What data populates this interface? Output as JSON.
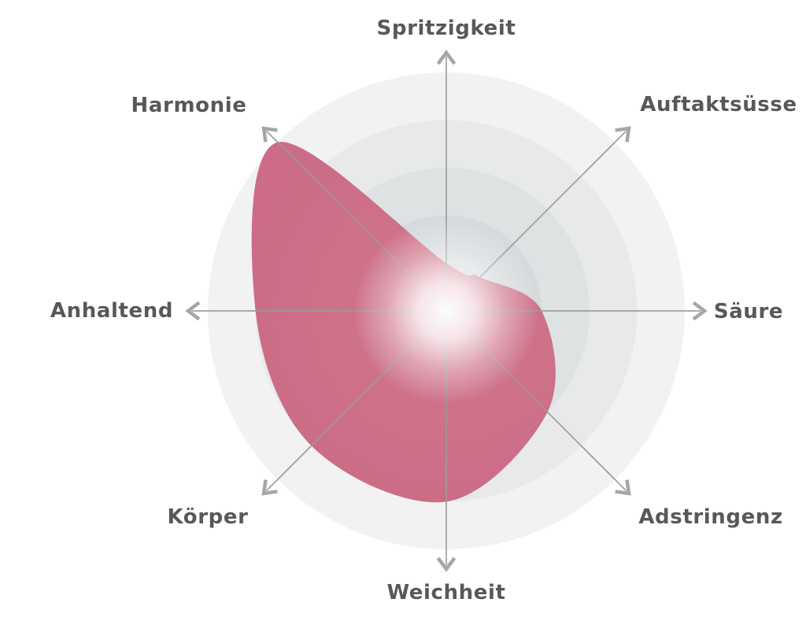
{
  "chart_data": {
    "type": "radar",
    "title": "",
    "categories": [
      "Spritzigkeit",
      "Auftaktsüsse",
      "Säure",
      "Adstringenz",
      "Weichheit",
      "Körper",
      "Anhaltend",
      "Harmonie"
    ],
    "values": [
      1,
      1,
      2,
      3,
      4,
      4,
      4,
      5
    ],
    "scale": {
      "min": 0,
      "max": 5,
      "rings": 5
    },
    "start_angle_deg": 90,
    "direction": "clockwise",
    "legend": "none",
    "grid": "concentric-circles",
    "style": {
      "blob_color": "#c9627e",
      "blob_color_inner": "#d67d92",
      "blob_opacity": 0.93,
      "ring_colors": [
        "#f2f2f3",
        "#e8e9e9",
        "#dee2e3",
        "#d5dadc",
        "#cdd4d6"
      ],
      "axis_line_color": "#9b9b9b",
      "arrow_color": "#a6a6a6",
      "label_color": "#57585a",
      "center_glow_color": "#ffffff",
      "background": "#ffffff"
    }
  }
}
